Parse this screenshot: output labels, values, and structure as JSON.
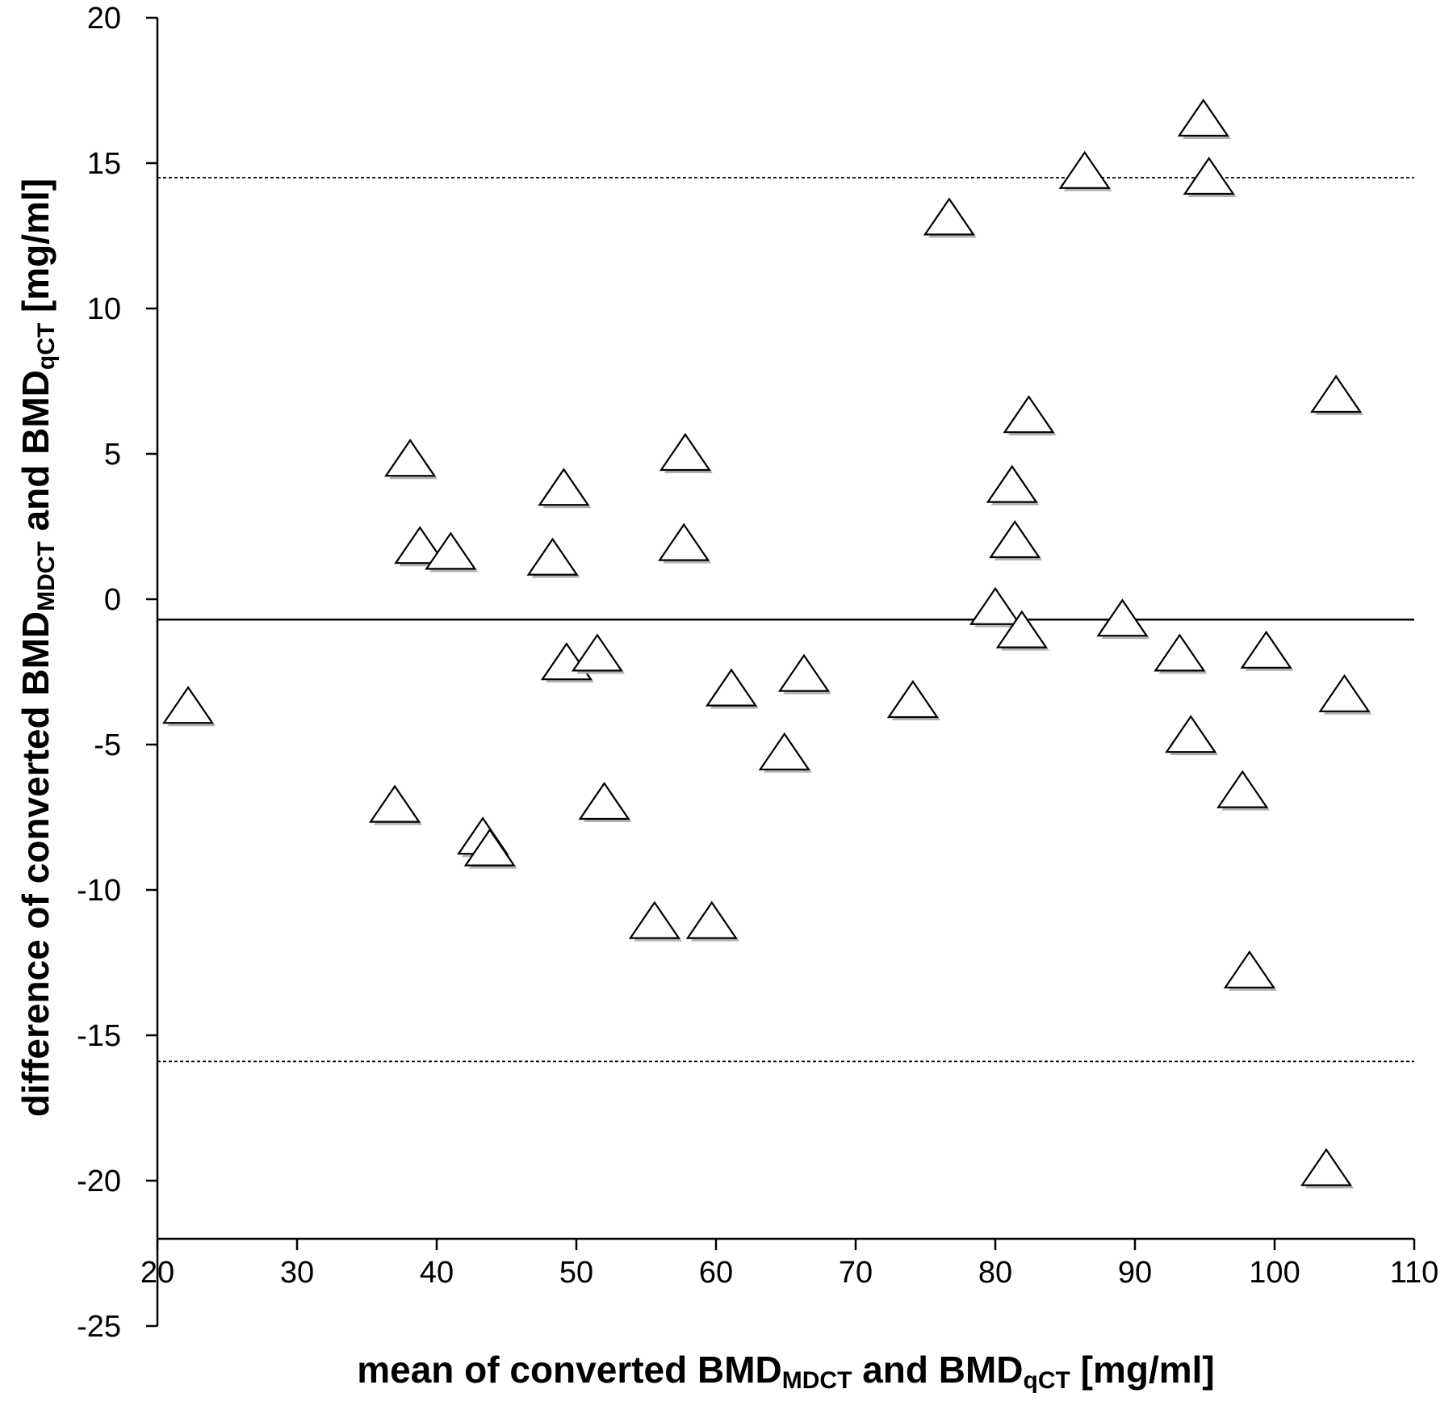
{
  "chart_data": {
    "type": "scatter",
    "title": "",
    "xlabel": {
      "parts": [
        {
          "text": "mean of converted BMD",
          "sub": false
        },
        {
          "text": "MDCT",
          "sub": true
        },
        {
          "text": " and BMD",
          "sub": false
        },
        {
          "text": "qCT",
          "sub": true
        },
        {
          "text": " [mg/ml]",
          "sub": false
        }
      ]
    },
    "ylabel": {
      "parts": [
        {
          "text": "difference of converted BMD",
          "sub": false
        },
        {
          "text": "MDCT",
          "sub": true
        },
        {
          "text": " and BMD",
          "sub": false
        },
        {
          "text": "qCT",
          "sub": true
        },
        {
          "text": " [mg/ml]",
          "sub": false
        }
      ]
    },
    "xlim": [
      20,
      110
    ],
    "ylim": [
      -25,
      20
    ],
    "x_axis_crosses_y_at": -22,
    "x_ticks": [
      20,
      30,
      40,
      50,
      60,
      70,
      80,
      90,
      100,
      110
    ],
    "y_ticks": [
      20,
      15,
      10,
      5,
      0,
      -5,
      -10,
      -15,
      -20,
      -25
    ],
    "x_tick_labels": [
      "20",
      "30",
      "40",
      "50",
      "60",
      "70",
      "80",
      "90",
      "100",
      "110"
    ],
    "y_tick_labels": [
      "20",
      "15",
      "10",
      "5",
      "0",
      "-5",
      "-10",
      "-15",
      "-20",
      "-25"
    ],
    "grid": false,
    "marker": "open-triangle",
    "reference_lines": [
      {
        "kind": "mean",
        "y": -0.7,
        "style": "solid"
      },
      {
        "kind": "upper-limit",
        "y": 14.5,
        "style": "dotted"
      },
      {
        "kind": "lower-limit",
        "y": -15.9,
        "style": "dotted"
      }
    ],
    "points": [
      {
        "x": 22.2,
        "y": -3.7
      },
      {
        "x": 37.0,
        "y": -7.1
      },
      {
        "x": 38.1,
        "y": 4.8
      },
      {
        "x": 38.8,
        "y": 1.8
      },
      {
        "x": 41.0,
        "y": 1.6
      },
      {
        "x": 43.3,
        "y": -8.2
      },
      {
        "x": 43.8,
        "y": -8.6
      },
      {
        "x": 48.3,
        "y": 1.4
      },
      {
        "x": 49.1,
        "y": 3.8
      },
      {
        "x": 49.3,
        "y": -2.2
      },
      {
        "x": 51.5,
        "y": -1.9
      },
      {
        "x": 52.0,
        "y": -7.0
      },
      {
        "x": 55.6,
        "y": -11.1
      },
      {
        "x": 57.7,
        "y": 1.9
      },
      {
        "x": 57.8,
        "y": 5.0
      },
      {
        "x": 59.7,
        "y": -11.1
      },
      {
        "x": 61.1,
        "y": -3.1
      },
      {
        "x": 64.9,
        "y": -5.3
      },
      {
        "x": 66.3,
        "y": -2.6
      },
      {
        "x": 74.1,
        "y": -3.5
      },
      {
        "x": 76.7,
        "y": 13.1
      },
      {
        "x": 80.0,
        "y": -0.3
      },
      {
        "x": 81.2,
        "y": 3.9
      },
      {
        "x": 81.4,
        "y": 2.0
      },
      {
        "x": 81.9,
        "y": -1.1
      },
      {
        "x": 82.4,
        "y": 6.3
      },
      {
        "x": 86.4,
        "y": 14.7
      },
      {
        "x": 89.1,
        "y": -0.7
      },
      {
        "x": 93.2,
        "y": -1.9
      },
      {
        "x": 94.0,
        "y": -4.7
      },
      {
        "x": 94.9,
        "y": 16.5
      },
      {
        "x": 95.3,
        "y": 14.5
      },
      {
        "x": 97.7,
        "y": -6.6
      },
      {
        "x": 98.2,
        "y": -12.8
      },
      {
        "x": 99.4,
        "y": -1.8
      },
      {
        "x": 103.7,
        "y": -19.6
      },
      {
        "x": 104.4,
        "y": 7.0
      },
      {
        "x": 105.0,
        "y": -3.3
      }
    ]
  },
  "colors": {
    "axis": "#000000",
    "marker_fill": "#ffffff",
    "marker_stroke": "#000000",
    "marker_shadow": "#b3b3b3"
  }
}
